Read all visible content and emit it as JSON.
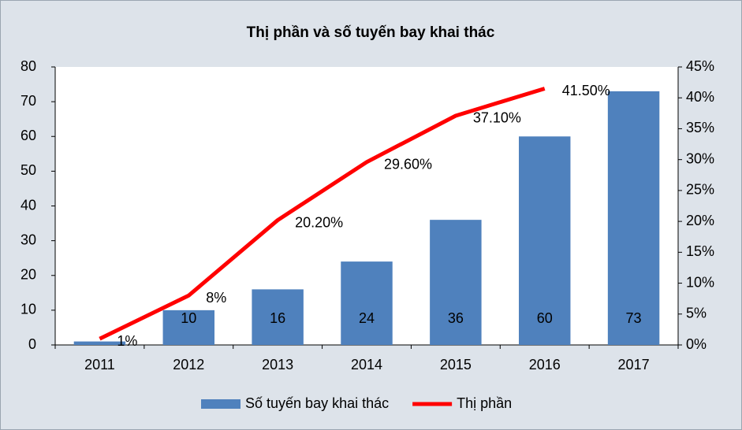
{
  "chart_data": {
    "type": "bar-line",
    "title": "Thị phần và số tuyến bay khai thác",
    "categories": [
      "2011",
      "2012",
      "2013",
      "2014",
      "2015",
      "2016",
      "2017"
    ],
    "series": [
      {
        "name": "Số tuyến bay khai thác",
        "color": "#4f81bd",
        "type": "bar",
        "values": [
          1,
          10,
          16,
          24,
          36,
          60,
          73
        ]
      },
      {
        "name": "Thị phần",
        "color": "#ff0000",
        "type": "line",
        "axis": "y2",
        "values": [
          1,
          8,
          20.2,
          29.6,
          37.1,
          41.5,
          null
        ],
        "value_labels": [
          "1%",
          "8%",
          "20.20%",
          "29.60%",
          "37.10%",
          "41.50%",
          null
        ]
      }
    ],
    "ylim": [
      0,
      80
    ],
    "yticks": [
      0,
      10,
      20,
      30,
      40,
      50,
      60,
      70,
      80
    ],
    "y2lim": [
      0,
      45
    ],
    "y2ticks": [
      {
        "value": 0,
        "label": "0%"
      },
      {
        "value": 5,
        "label": "5%"
      },
      {
        "value": 10,
        "label": "10%"
      },
      {
        "value": 15,
        "label": "15%"
      },
      {
        "value": 20,
        "label": "20%"
      },
      {
        "value": 25,
        "label": "25%"
      },
      {
        "value": 30,
        "label": "30%"
      },
      {
        "value": 35,
        "label": "35%"
      },
      {
        "value": 40,
        "label": "40%"
      },
      {
        "value": 45,
        "label": "45%"
      }
    ],
    "legend": "bottom"
  }
}
